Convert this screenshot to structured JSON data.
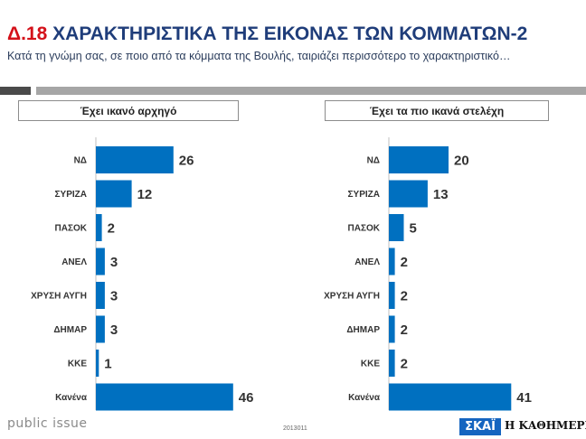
{
  "header": {
    "code": "Δ.18",
    "title": "ΧΑΡΑΚΤΗΡΙΣΤΙΚΑ ΤΗΣ ΕΙΚΟΝΑΣ ΤΩΝ ΚΟΜΜΑΤΩΝ-2",
    "subtitle": "Κατά τη γνώμη σας, σε ποιο από τα κόμματα της Βουλής, ταιριάζει περισσότερο το χαρακτηριστικό…"
  },
  "footer": {
    "brand": "public issue",
    "code": "2013011",
    "logo_skai": "ΣΚΑΪ",
    "logo_kathimerini": "Η ΚΑΘΗΜΕΡΙΝΗ"
  },
  "colors": {
    "bar": "#0070c0",
    "title_code": "#d4111a",
    "title_text": "#1f3d7a"
  },
  "chart_data": [
    {
      "type": "bar",
      "orientation": "horizontal",
      "title": "Έχει ικανό αρχηγό",
      "categories": [
        "ΝΔ",
        "ΣΥΡΙΖΑ",
        "ΠΑΣΟΚ",
        "ΑΝΕΛ",
        "ΧΡΥΣΗ ΑΥΓΗ",
        "ΔΗΜΑΡ",
        "ΚΚΕ",
        "Κανένα"
      ],
      "values": [
        26,
        12,
        2,
        3,
        3,
        3,
        1,
        46
      ],
      "xlim": [
        0,
        50
      ],
      "grid": false,
      "legend": "none"
    },
    {
      "type": "bar",
      "orientation": "horizontal",
      "title": "Έχει τα πιο ικανά στελέχη",
      "categories": [
        "ΝΔ",
        "ΣΥΡΙΖΑ",
        "ΠΑΣΟΚ",
        "ΑΝΕΛ",
        "ΧΡΥΣΗ ΑΥΓΗ",
        "ΔΗΜΑΡ",
        "ΚΚΕ",
        "Κανένα"
      ],
      "values": [
        20,
        13,
        5,
        2,
        2,
        2,
        2,
        41
      ],
      "xlim": [
        0,
        50
      ],
      "grid": false,
      "legend": "none"
    }
  ]
}
